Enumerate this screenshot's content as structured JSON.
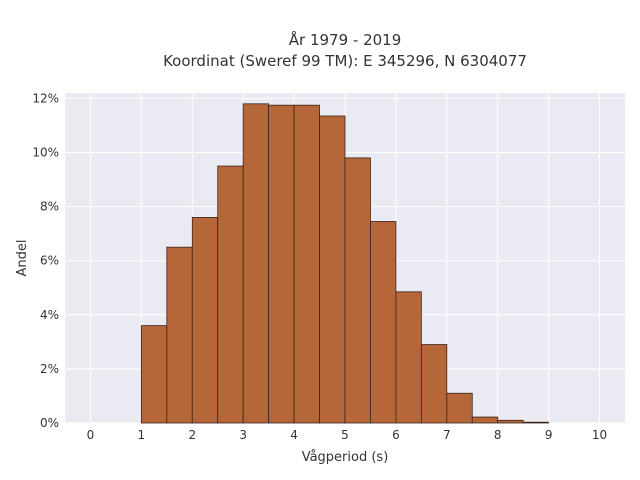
{
  "chart_data": {
    "type": "bar",
    "title_lines": [
      "År 1979 - 2019",
      "Koordinat (Sweref 99 TM): E 345296, N 6304077"
    ],
    "xlabel": "Vågperiod (s)",
    "ylabel": "Andel",
    "xlim": [
      -0.5,
      10.5
    ],
    "ylim": [
      0,
      12.2
    ],
    "x_ticks": [
      0,
      1,
      2,
      3,
      4,
      5,
      6,
      7,
      8,
      9,
      10
    ],
    "y_ticks": [
      0,
      2,
      4,
      6,
      8,
      10,
      12
    ],
    "y_tick_labels": [
      "0%",
      "2%",
      "4%",
      "6%",
      "8%",
      "10%",
      "12%"
    ],
    "bin_width": 0.5,
    "bin_starts": [
      1.0,
      1.5,
      2.0,
      2.5,
      3.0,
      3.5,
      4.0,
      4.5,
      5.0,
      5.5,
      6.0,
      6.5,
      7.0,
      7.5,
      8.0,
      8.5
    ],
    "values": [
      3.6,
      6.5,
      7.6,
      9.5,
      11.8,
      11.75,
      11.75,
      11.35,
      9.8,
      7.45,
      4.85,
      2.9,
      1.1,
      0.22,
      0.1,
      0.03
    ],
    "bar_color": "#b5673a",
    "bar_edge_color": "#3a2518",
    "background_color": "#eaeaf2",
    "grid": true,
    "grid_color": "#ffffff"
  }
}
